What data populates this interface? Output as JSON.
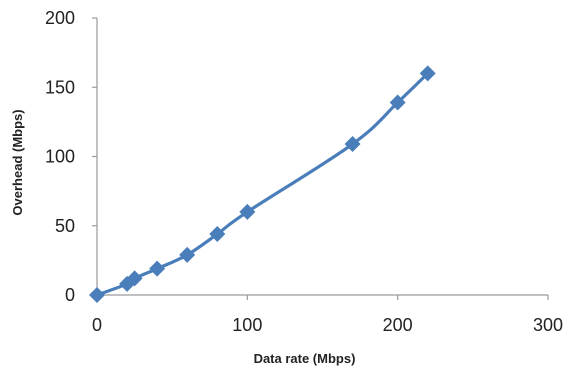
{
  "chart_data": {
    "type": "line",
    "title": "",
    "xlabel": "Data rate (Mbps)",
    "ylabel": "Overhead (Mbps)",
    "xlim": [
      0,
      300
    ],
    "ylim": [
      0,
      200
    ],
    "x_ticks": [
      0,
      100,
      200,
      300
    ],
    "y_ticks": [
      0,
      50,
      100,
      150,
      200
    ],
    "grid": false,
    "legend": "none",
    "marker": "diamond",
    "series": [
      {
        "color": "#4a7ebb",
        "x": [
          0,
          20,
          25,
          40,
          60,
          80,
          100,
          170,
          200,
          220
        ],
        "y": [
          0,
          8,
          12,
          19,
          29,
          44,
          60,
          109,
          139,
          160
        ]
      }
    ]
  }
}
